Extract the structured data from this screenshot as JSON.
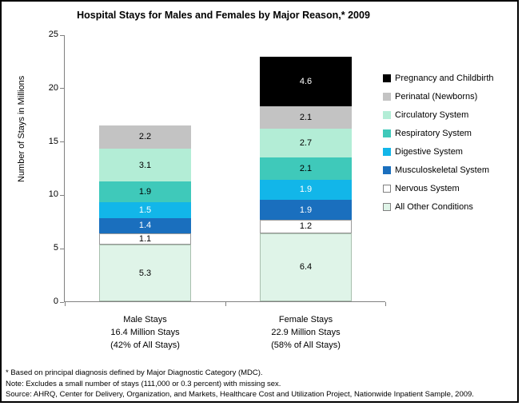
{
  "title": "Hospital Stays for Males and Females by Major Reason,* 2009",
  "chart_data": {
    "type": "bar",
    "stacked": true,
    "grid": false,
    "legend_position": "right",
    "title": "Hospital Stays for Males and Females by Major Reason,* 2009",
    "xlabel": "",
    "ylabel": "Number of Stays in Millions",
    "ylim": [
      0,
      25
    ],
    "yticks": [
      0,
      5,
      10,
      15,
      20,
      25
    ],
    "categories": [
      {
        "lines": [
          "Male Stays",
          "16.4 Million Stays",
          "(42% of All Stays)"
        ]
      },
      {
        "lines": [
          "Female Stays",
          "22.9 Million Stays",
          "(58% of All Stays)"
        ]
      }
    ],
    "series": [
      {
        "name": "Pregnancy and Childbirth",
        "color": "#000000",
        "text_color": "#ffffff",
        "values": [
          null,
          4.6
        ]
      },
      {
        "name": "Perinatal (Newborns)",
        "color": "#c3c3c3",
        "pattern": "dots",
        "text_color": "#000000",
        "values": [
          2.2,
          2.1
        ]
      },
      {
        "name": "Circulatory System",
        "color": "#b3edd6",
        "text_color": "#000000",
        "values": [
          3.1,
          2.7
        ]
      },
      {
        "name": "Respiratory System",
        "color": "#3fc9ba",
        "text_color": "#000000",
        "values": [
          1.9,
          2.1
        ]
      },
      {
        "name": "Digestive System",
        "color": "#12b6e9",
        "text_color": "#ffffff",
        "values": [
          1.5,
          1.9
        ]
      },
      {
        "name": "Musculoskeletal System",
        "color": "#1a6fbe",
        "text_color": "#ffffff",
        "values": [
          1.4,
          1.9
        ]
      },
      {
        "name": "Nervous System",
        "color": "#ffffff",
        "border": "#9a9a9a",
        "text_color": "#000000",
        "values": [
          1.1,
          1.2
        ]
      },
      {
        "name": "All Other Conditions",
        "color": "#dff4e8",
        "border": "#a9bfae",
        "text_color": "#000000",
        "values": [
          5.3,
          6.4
        ]
      }
    ]
  },
  "notes": [
    "* Based on principal diagnosis defined by Major Diagnostic Category (MDC).",
    "Note: Excludes a small number of stays (111,000 or 0.3 percent) with missing sex.",
    "Source: AHRQ, Center for Delivery, Organization, and Markets, Healthcare Cost and Utilization Project, Nationwide Inpatient Sample, 2009."
  ]
}
